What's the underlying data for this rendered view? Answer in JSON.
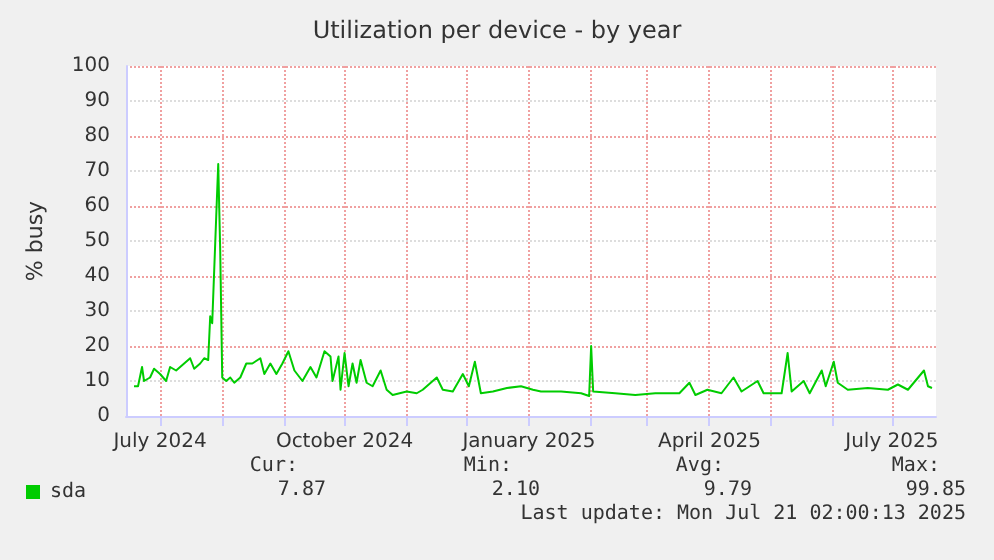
{
  "chart_data": {
    "type": "line",
    "title": "Utilization per device - by year",
    "ylabel": "% busy",
    "xlim": [
      "2024-06-14",
      "2025-07-23"
    ],
    "xticks": [
      {
        "value": "2024-07-01",
        "label": "July 2024"
      },
      {
        "value": "2024-08-01",
        "label": null
      },
      {
        "value": "2024-09-01",
        "label": null
      },
      {
        "value": "2024-10-01",
        "label": "October 2024"
      },
      {
        "value": "2024-11-01",
        "label": null
      },
      {
        "value": "2024-12-01",
        "label": null
      },
      {
        "value": "2025-01-01",
        "label": "January 2025"
      },
      {
        "value": "2025-02-01",
        "label": null
      },
      {
        "value": "2025-03-01",
        "label": null
      },
      {
        "value": "2025-04-01",
        "label": "April 2025"
      },
      {
        "value": "2025-05-01",
        "label": null
      },
      {
        "value": "2025-06-01",
        "label": null
      },
      {
        "value": "2025-07-01",
        "label": "July 2025"
      }
    ],
    "ylim": [
      0,
      100
    ],
    "yticks": [
      0,
      10,
      20,
      30,
      40,
      50,
      60,
      70,
      80,
      90,
      100
    ],
    "grid": true,
    "legend": "bottom left",
    "marker": "none",
    "line_style": "solid",
    "series": [
      {
        "name": "sda",
        "color": "#00cc00",
        "x": [
          "2024-06-18",
          "2024-06-20",
          "2024-06-22",
          "2024-06-23",
          "2024-06-26",
          "2024-06-28",
          "2024-07-01",
          "2024-07-04",
          "2024-07-06",
          "2024-07-09",
          "2024-07-13",
          "2024-07-16",
          "2024-07-18",
          "2024-07-21",
          "2024-07-23",
          "2024-07-25",
          "2024-07-26",
          "2024-07-27",
          "2024-07-29",
          "2024-07-30",
          "2024-07-31",
          "2024-08-01",
          "2024-08-03",
          "2024-08-05",
          "2024-08-07",
          "2024-08-10",
          "2024-08-13",
          "2024-08-16",
          "2024-08-20",
          "2024-08-22",
          "2024-08-25",
          "2024-08-28",
          "2024-08-31",
          "2024-09-03",
          "2024-09-06",
          "2024-09-10",
          "2024-09-14",
          "2024-09-17",
          "2024-09-21",
          "2024-09-24",
          "2024-09-25",
          "2024-09-28",
          "2024-09-29",
          "2024-10-01",
          "2024-10-03",
          "2024-10-05",
          "2024-10-07",
          "2024-10-09",
          "2024-10-12",
          "2024-10-15",
          "2024-10-19",
          "2024-10-22",
          "2024-10-25",
          "2024-11-01",
          "2024-11-06",
          "2024-11-09",
          "2024-11-16",
          "2024-11-19",
          "2024-11-24",
          "2024-11-29",
          "2024-12-02",
          "2024-12-05",
          "2024-12-08",
          "2024-12-14",
          "2024-12-21",
          "2024-12-28",
          "2025-01-03",
          "2025-01-07",
          "2025-01-17",
          "2025-01-27",
          "2025-01-31",
          "2025-02-01",
          "2025-02-02",
          "2025-02-13",
          "2025-02-23",
          "2025-03-05",
          "2025-03-17",
          "2025-03-22",
          "2025-03-25",
          "2025-03-31",
          "2025-04-07",
          "2025-04-13",
          "2025-04-17",
          "2025-04-25",
          "2025-04-28",
          "2025-05-07",
          "2025-05-10",
          "2025-05-12",
          "2025-05-18",
          "2025-05-21",
          "2025-05-27",
          "2025-05-29",
          "2025-06-02",
          "2025-06-04",
          "2025-06-09",
          "2025-06-19",
          "2025-06-29",
          "2025-07-04",
          "2025-07-09",
          "2025-07-17",
          "2025-07-19",
          "2025-07-21"
        ],
        "values": [
          8.5,
          8.5,
          14,
          10,
          11,
          13.5,
          12,
          10,
          14,
          13,
          15,
          16.5,
          13.5,
          15,
          16.5,
          16,
          28.5,
          26.5,
          57,
          72,
          47,
          11,
          10,
          11,
          9.5,
          11,
          15,
          15,
          16.5,
          12,
          15,
          12,
          15,
          18.5,
          13,
          10,
          14,
          11,
          18.5,
          17,
          10,
          17,
          7.5,
          18,
          8.5,
          15,
          9.5,
          16,
          9.5,
          8.5,
          13,
          7.5,
          6,
          7,
          6.5,
          7.5,
          11,
          7.5,
          7,
          12,
          8.5,
          15.5,
          6.5,
          7,
          8,
          8.5,
          7.5,
          7,
          7,
          6.5,
          5.7,
          20,
          7,
          6.5,
          6,
          6.5,
          6.5,
          9.5,
          6,
          7.5,
          6.5,
          11,
          7,
          10,
          6.5,
          6.5,
          18,
          7,
          10,
          6.5,
          13,
          8.5,
          15.5,
          9.5,
          7.5,
          8,
          7.5,
          9,
          7.5,
          13,
          8.5,
          8
        ]
      }
    ],
    "annotations": [
      "Cur:",
      "Min:",
      "Avg:",
      "Max:",
      "7.87",
      "2.10",
      "9.79",
      "99.85",
      "Last update: Mon Jul 21 02:00:13 2025"
    ]
  }
}
